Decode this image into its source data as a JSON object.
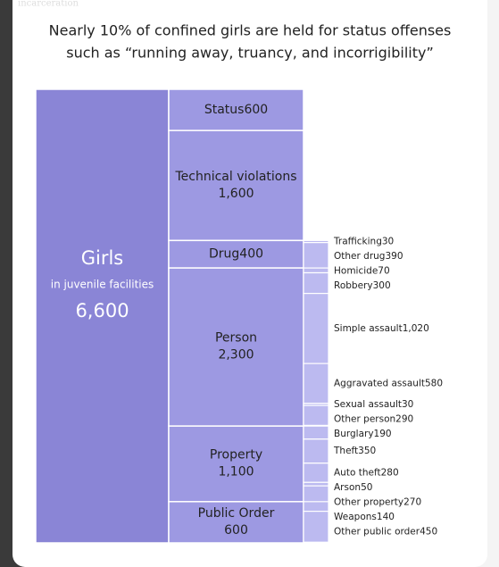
{
  "background_fragments": [
    "incarceration"
  ],
  "chart_data": {
    "type": "treemap",
    "title": "Nearly 10% of confined girls are held for status offenses",
    "subtitle": "such as “running away, truancy, and incorrigibility”",
    "total": {
      "name": "Girls",
      "sublabel": "in juvenile facilities",
      "value": 6600,
      "value_label": "6,600"
    },
    "colors": [
      "#8a85d6",
      "#9d99e2",
      "#bcbaf0"
    ],
    "categories": [
      {
        "name": "Status",
        "value": 600,
        "value_label": "600",
        "children": []
      },
      {
        "name": "Technical violations",
        "value": 1600,
        "value_label": "1,600",
        "children": []
      },
      {
        "name": "Drug",
        "value": 400,
        "value_label": "400",
        "children": [
          {
            "name": "Trafficking",
            "value": 30,
            "value_label": "30"
          },
          {
            "name": "Other drug",
            "value": 390,
            "value_label": "390"
          }
        ]
      },
      {
        "name": "Person",
        "value": 2300,
        "value_label": "2,300",
        "children": [
          {
            "name": "Homicide",
            "value": 70,
            "value_label": "70"
          },
          {
            "name": "Robbery",
            "value": 300,
            "value_label": "300"
          },
          {
            "name": "Simple assault",
            "value": 1020,
            "value_label": "1,020"
          },
          {
            "name": "Aggravated assault",
            "value": 580,
            "value_label": "580"
          },
          {
            "name": "Sexual assault",
            "value": 30,
            "value_label": "30"
          },
          {
            "name": "Other person",
            "value": 290,
            "value_label": "290"
          }
        ]
      },
      {
        "name": "Property",
        "value": 1100,
        "value_label": "1,100",
        "children": [
          {
            "name": "Burglary",
            "value": 190,
            "value_label": "190"
          },
          {
            "name": "Theft",
            "value": 350,
            "value_label": "350"
          },
          {
            "name": "Auto theft",
            "value": 280,
            "value_label": "280"
          },
          {
            "name": "Arson",
            "value": 50,
            "value_label": "50"
          },
          {
            "name": "Other property",
            "value": 270,
            "value_label": "270"
          }
        ]
      },
      {
        "name": "Public Order",
        "value": 600,
        "value_label": "600",
        "children": [
          {
            "name": "Weapons",
            "value": 140,
            "value_label": "140"
          },
          {
            "name": "Other public order",
            "value": 450,
            "value_label": "450"
          }
        ]
      }
    ]
  }
}
